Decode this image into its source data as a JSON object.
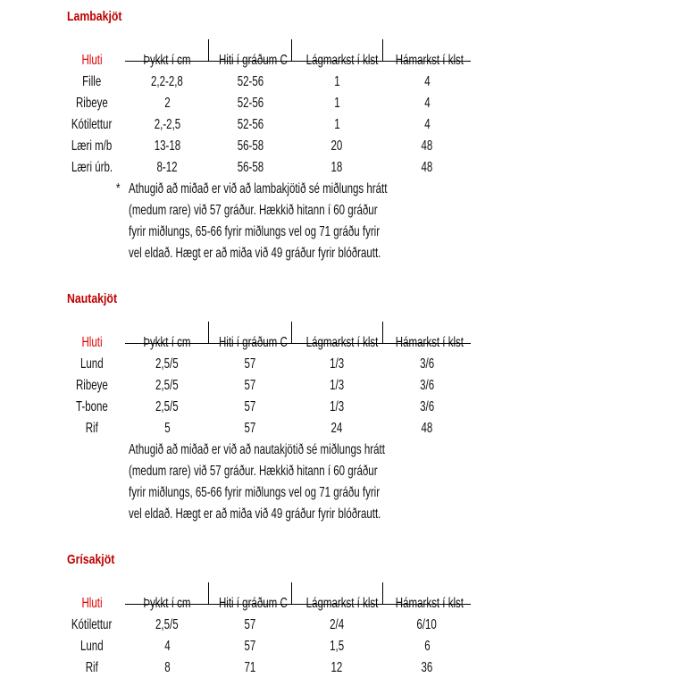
{
  "headers": [
    "Hluti",
    "Þykkt í cm",
    "Hiti í gráðum C",
    "Lágmarkst í klst",
    "Hámarkst í klst"
  ],
  "sections": [
    {
      "title": "Lambakjöt",
      "rows": [
        [
          "Fille",
          "2,2-2,8",
          "52-56",
          "1",
          "4"
        ],
        [
          "Ribeye",
          "2",
          "52-56",
          "1",
          "4"
        ],
        [
          "Kótilettur",
          "2,-2,5",
          "52-56",
          "1",
          "4"
        ],
        [
          "Læri m/b",
          "13-18",
          "56-58",
          "20",
          "48"
        ],
        [
          "Læri úrb.",
          "8-12",
          "56-58",
          "18",
          "48"
        ]
      ],
      "note_marker": "*",
      "note_lines": [
        "Athugið að miðað er við að lambakjötið sé miðlungs hrátt",
        "(medum rare) við 57 gráður. Hækkið hitann í 60 gráður",
        "fyrir miðlungs, 65-66 fyrir miðlungs vel og 71 gráðu fyrir",
        "vel eldað. Hægt er að miða við 49 gráður fyrir blóðrautt."
      ]
    },
    {
      "title": "Nautakjöt",
      "rows": [
        [
          "Lund",
          "2,5/5",
          "57",
          "1/3",
          "3/6"
        ],
        [
          "Ribeye",
          "2,5/5",
          "57",
          "1/3",
          "3/6"
        ],
        [
          "T-bone",
          "2,5/5",
          "57",
          "1/3",
          "3/6"
        ],
        [
          "Rif",
          "5",
          "57",
          "24",
          "48"
        ]
      ],
      "note_marker": "",
      "note_lines": [
        "Athugið að miðað er við að nautakjötið sé miðlungs hrátt",
        "(medum rare) við 57 gráður. Hækkið hitann í 60 gráður",
        "fyrir miðlungs, 65-66 fyrir miðlungs vel og 71 gráðu fyrir",
        "vel eldað. Hægt er að miða við 49 gráður fyrir blóðrautt."
      ]
    },
    {
      "title": "Grísakjöt",
      "rows": [
        [
          "Kótilettur",
          "2,5/5",
          "57",
          "2/4",
          "6/10"
        ],
        [
          "Lund",
          "4",
          "57",
          "1,5",
          "6"
        ],
        [
          "Rif",
          "8",
          "71",
          "12",
          "36"
        ]
      ],
      "note_marker": "",
      "note_lines": []
    }
  ]
}
